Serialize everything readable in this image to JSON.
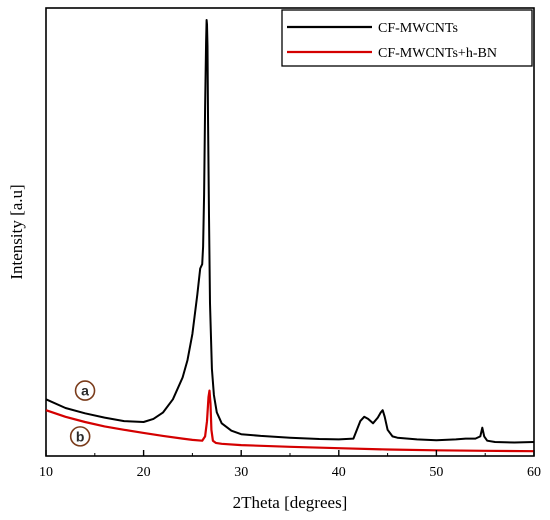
{
  "chart_data": {
    "type": "line",
    "title": "",
    "xlabel": "2Theta [degrees]",
    "ylabel": "Intensity [a.u]",
    "xlim": [
      10,
      60
    ],
    "ylim": [
      0,
      100
    ],
    "xticks": [
      10,
      20,
      30,
      40,
      50,
      60
    ],
    "yticks_shown": false,
    "grid": false,
    "legend_position": "top-right",
    "series": [
      {
        "name": "CF-MWCNTs",
        "color": "#000000",
        "x": [
          10,
          12,
          14,
          16,
          18,
          20,
          21,
          22,
          23,
          24,
          24.5,
          25,
          25.5,
          25.8,
          26.0,
          26.1,
          26.2,
          26.3,
          26.4,
          26.45,
          26.5,
          26.55,
          26.6,
          26.7,
          26.8,
          27.0,
          27.2,
          27.5,
          28,
          29,
          30,
          32,
          35,
          38,
          40,
          41.5,
          42.2,
          42.6,
          43.0,
          43.5,
          44.0,
          44.3,
          44.5,
          44.7,
          45.0,
          45.5,
          46,
          48,
          50,
          52,
          53,
          54,
          54.5,
          54.7,
          54.9,
          55.2,
          56,
          58,
          60
        ],
        "y": [
          13.0,
          11.0,
          9.8,
          8.8,
          8.0,
          7.8,
          8.5,
          10.0,
          13.0,
          18.0,
          22.0,
          28.0,
          37.0,
          43.0,
          44.0,
          48.0,
          60.0,
          80.0,
          95.0,
          100.0,
          99.0,
          94.0,
          78.0,
          55.0,
          35.0,
          20.0,
          14.0,
          10.0,
          7.5,
          5.8,
          5.0,
          4.6,
          4.2,
          3.9,
          3.8,
          4.0,
          8.0,
          9.0,
          8.5,
          7.5,
          8.8,
          10.0,
          10.5,
          9.0,
          6.0,
          4.5,
          4.2,
          3.8,
          3.6,
          3.8,
          4.0,
          4.0,
          4.5,
          6.5,
          4.5,
          3.5,
          3.2,
          3.1,
          3.2
        ]
      },
      {
        "name": "CF-MWCNTs+h-BN",
        "color": "#d40000",
        "x": [
          10,
          12,
          14,
          16,
          18,
          20,
          22,
          24,
          25,
          26,
          26.3,
          26.5,
          26.65,
          26.75,
          26.85,
          26.95,
          27.1,
          27.4,
          28,
          30,
          35,
          40,
          45,
          50,
          55,
          60
        ],
        "y": [
          10.5,
          9.0,
          7.8,
          6.8,
          6.0,
          5.3,
          4.6,
          4.0,
          3.7,
          3.5,
          4.5,
          8.0,
          13.5,
          15.0,
          12.0,
          6.0,
          3.5,
          3.0,
          2.8,
          2.5,
          2.1,
          1.8,
          1.5,
          1.3,
          1.2,
          1.1
        ]
      }
    ],
    "annotations": [
      {
        "text": "a",
        "x": 14,
        "y": 15
      },
      {
        "text": "b",
        "x": 13.5,
        "y": 4.5
      }
    ]
  }
}
